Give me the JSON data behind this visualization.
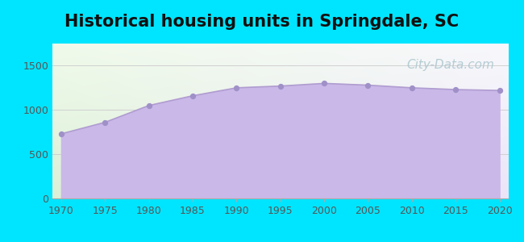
{
  "title": "Historical housing units in Springdale, SC",
  "title_fontsize": 15,
  "title_color": "#111111",
  "background_color": "#00e5ff",
  "years": [
    1970,
    1975,
    1980,
    1985,
    1990,
    1995,
    2000,
    2005,
    2010,
    2015,
    2020
  ],
  "values": [
    730,
    860,
    1050,
    1160,
    1250,
    1270,
    1300,
    1280,
    1250,
    1230,
    1220
  ],
  "fill_color": "#c9b8e8",
  "fill_alpha": 1.0,
  "line_color": "#b09cd0",
  "line_width": 1.2,
  "marker_color": "#a090c8",
  "marker_size": 18,
  "xtick_labels": [
    "1970",
    "1975",
    "1980",
    "1985",
    "1990",
    "1995",
    "2000",
    "2005",
    "2010",
    "2015",
    "2020"
  ],
  "xtick_values": [
    1970,
    1975,
    1980,
    1985,
    1990,
    1995,
    2000,
    2005,
    2010,
    2015,
    2020
  ],
  "ytick_values": [
    0,
    500,
    1000,
    1500
  ],
  "ylim": [
    0,
    1750
  ],
  "xlim": [
    1969,
    2021
  ],
  "watermark_text": "City-Data.com",
  "watermark_color": "#aec8d0",
  "watermark_fontsize": 11,
  "tick_color": "#555555",
  "tick_fontsize": 9,
  "grid_color": "#d0d0d0",
  "grid_linewidth": 0.7
}
